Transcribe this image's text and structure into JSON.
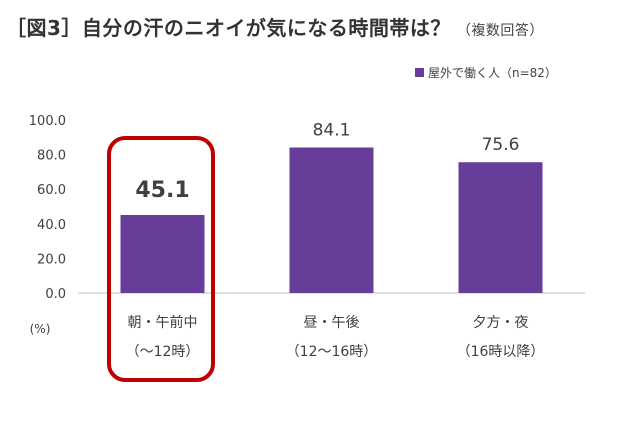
{
  "header": {
    "title": "［図3］自分の汗のニオイが気になる時間帯は？",
    "subtitle": "（複数回答）"
  },
  "legend": {
    "label": "屋外で働く人（n=82）"
  },
  "colors": {
    "bar": "#663d99",
    "highlight": "#c00000",
    "axis": "#bfbfbf",
    "text": "#404040"
  },
  "chart_data": {
    "type": "bar",
    "title": "［図3］自分の汗のニオイが気になる時間帯は？",
    "subtitle": "（複数回答）",
    "unit_label": "(%)",
    "categories": [
      {
        "line1": "朝・午前中",
        "line2": "（〜12時）"
      },
      {
        "line1": "昼・午後",
        "line2": "（12〜16時）"
      },
      {
        "line1": "夕方・夜",
        "line2": "（16時以降）"
      }
    ],
    "series": [
      {
        "name": "屋外で働く人（n=82）",
        "values": [
          45.1,
          84.1,
          75.6
        ]
      }
    ],
    "value_labels": [
      "45.1",
      "84.1",
      "75.6"
    ],
    "ylim": [
      0,
      100
    ],
    "yticks": [
      "0.0",
      "20.0",
      "40.0",
      "60.0",
      "80.0",
      "100.0"
    ],
    "highlight_index": 0,
    "grid": false,
    "legend_position": "top-right"
  }
}
